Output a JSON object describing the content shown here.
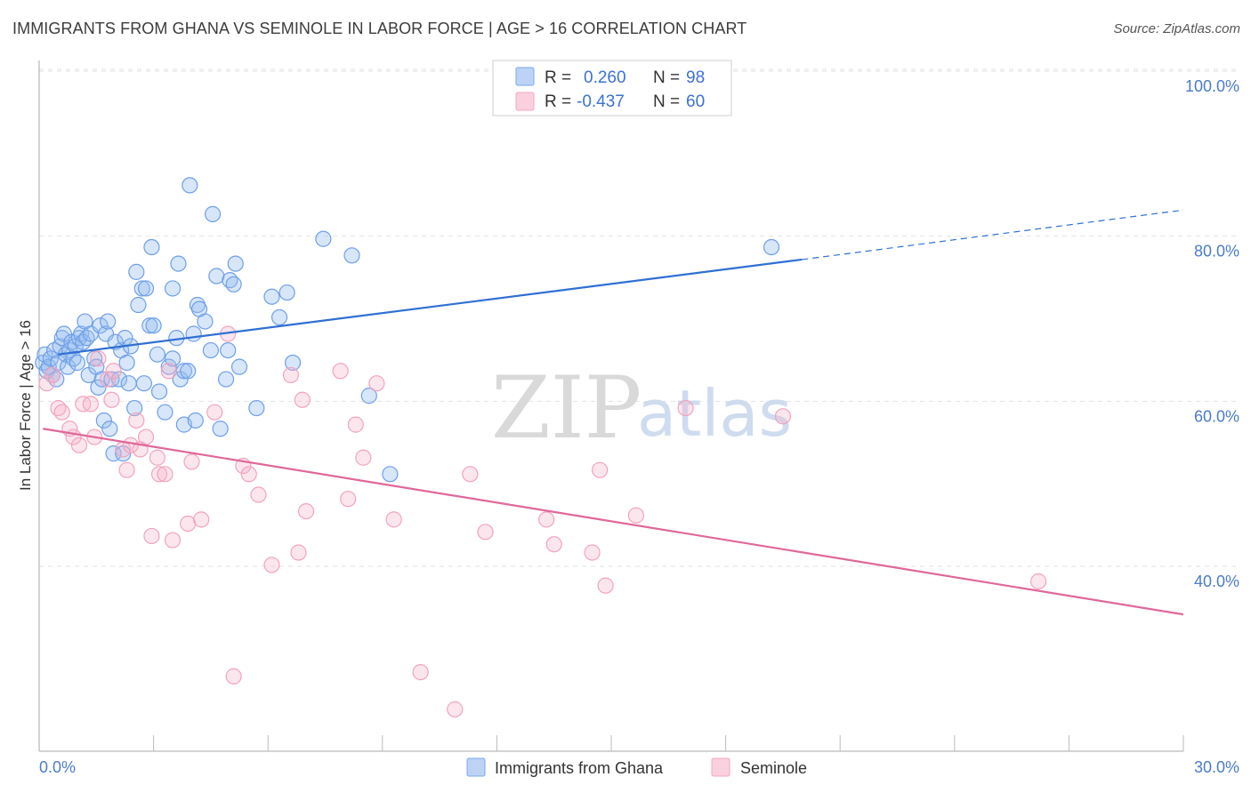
{
  "header": {
    "title": "IMMIGRANTS FROM GHANA VS SEMINOLE IN LABOR FORCE | AGE > 16 CORRELATION CHART",
    "source": "Source: ZipAtlas.com"
  },
  "watermark": {
    "zip": "ZIP",
    "atlas": "atlas"
  },
  "legend_box": {
    "rows": [
      {
        "r_label": "R = ",
        "r_value": "0.260",
        "n_label": "N = ",
        "n_value": "98",
        "color": "#7aaaf0"
      },
      {
        "r_label": "R = ",
        "r_value": "-0.437",
        "n_label": "N = ",
        "n_value": "60",
        "color": "#f4a8c0"
      }
    ]
  },
  "chart_data": {
    "type": "scatter",
    "title": "IMMIGRANTS FROM GHANA VS SEMINOLE IN LABOR FORCE | AGE > 16 CORRELATION CHART",
    "xlabel": "",
    "ylabel": "In Labor Force | Age > 16",
    "xlim": [
      0,
      30
    ],
    "ylim": [
      20,
      103
    ],
    "x_tick_labels": [
      "0.0%",
      "30.0%"
    ],
    "y_ticks": [
      40,
      60,
      80,
      100
    ],
    "y_tick_labels": [
      "40.0%",
      "60.0%",
      "80.0%",
      "100.0%"
    ],
    "grid": true,
    "legend_position": "bottom",
    "series": [
      {
        "name": "Immigrants from Ghana",
        "color": "#6f9fe8",
        "line_color": "#2f6fd4",
        "trend": {
          "x0": 0.5,
          "y0": 67.5,
          "x1": 20.0,
          "y1": 79.0,
          "dash_to_x": 30.0,
          "dash_to_y": 85.0
        },
        "points": [
          [
            0.1,
            66.5
          ],
          [
            0.15,
            67.5
          ],
          [
            0.2,
            65.5
          ],
          [
            0.25,
            66.0
          ],
          [
            0.3,
            67.0
          ],
          [
            0.35,
            65.0
          ],
          [
            0.4,
            68.0
          ],
          [
            0.45,
            64.5
          ],
          [
            0.5,
            66.5
          ],
          [
            0.55,
            68.5
          ],
          [
            0.6,
            69.5
          ],
          [
            0.65,
            70.0
          ],
          [
            0.7,
            67.5
          ],
          [
            0.75,
            66.0
          ],
          [
            0.8,
            68.0
          ],
          [
            0.85,
            69.0
          ],
          [
            0.9,
            67.0
          ],
          [
            0.95,
            68.5
          ],
          [
            1.0,
            66.5
          ],
          [
            1.05,
            69.5
          ],
          [
            1.1,
            70.0
          ],
          [
            1.15,
            69.0
          ],
          [
            1.2,
            71.5
          ],
          [
            1.25,
            69.5
          ],
          [
            1.3,
            65.0
          ],
          [
            1.35,
            70.0
          ],
          [
            1.45,
            67.0
          ],
          [
            1.5,
            66.0
          ],
          [
            1.55,
            63.5
          ],
          [
            1.6,
            71.0
          ],
          [
            1.65,
            64.5
          ],
          [
            1.7,
            59.5
          ],
          [
            1.75,
            70.0
          ],
          [
            1.8,
            71.5
          ],
          [
            1.85,
            58.5
          ],
          [
            1.9,
            64.5
          ],
          [
            1.95,
            55.5
          ],
          [
            2.0,
            69.0
          ],
          [
            2.1,
            64.5
          ],
          [
            2.15,
            68.0
          ],
          [
            2.2,
            55.5
          ],
          [
            2.25,
            69.5
          ],
          [
            2.3,
            66.5
          ],
          [
            2.35,
            64.0
          ],
          [
            2.4,
            68.5
          ],
          [
            2.5,
            61.0
          ],
          [
            2.55,
            77.5
          ],
          [
            2.6,
            73.5
          ],
          [
            2.7,
            75.5
          ],
          [
            2.75,
            64.0
          ],
          [
            2.8,
            75.5
          ],
          [
            2.9,
            71.0
          ],
          [
            2.95,
            80.5
          ],
          [
            3.0,
            71.0
          ],
          [
            3.1,
            67.5
          ],
          [
            3.15,
            63.0
          ],
          [
            3.3,
            60.5
          ],
          [
            3.4,
            66.0
          ],
          [
            3.5,
            75.5
          ],
          [
            3.5,
            67.0
          ],
          [
            3.6,
            69.5
          ],
          [
            3.65,
            78.5
          ],
          [
            3.7,
            64.5
          ],
          [
            3.8,
            59.0
          ],
          [
            3.8,
            65.5
          ],
          [
            3.9,
            65.5
          ],
          [
            3.95,
            88.0
          ],
          [
            4.05,
            70.0
          ],
          [
            4.1,
            59.5
          ],
          [
            4.15,
            73.5
          ],
          [
            4.2,
            73.0
          ],
          [
            4.35,
            71.5
          ],
          [
            4.5,
            68.0
          ],
          [
            4.55,
            84.5
          ],
          [
            4.65,
            77.0
          ],
          [
            4.75,
            58.5
          ],
          [
            4.9,
            64.5
          ],
          [
            4.95,
            68.0
          ],
          [
            5.0,
            76.5
          ],
          [
            5.1,
            76.0
          ],
          [
            5.15,
            78.5
          ],
          [
            5.25,
            66.0
          ],
          [
            5.7,
            61.0
          ],
          [
            6.1,
            74.5
          ],
          [
            6.3,
            72.0
          ],
          [
            6.5,
            75.0
          ],
          [
            6.65,
            66.5
          ],
          [
            7.45,
            81.5
          ],
          [
            8.2,
            79.5
          ],
          [
            8.65,
            62.5
          ],
          [
            9.2,
            53.0
          ],
          [
            19.2,
            80.5
          ]
        ]
      },
      {
        "name": "Seminole",
        "color": "#f2a3bd",
        "line_color": "#e0679a",
        "trend": {
          "x0": 0.1,
          "y0": 58.5,
          "x1": 30.0,
          "y1": 36.0
        },
        "points": [
          [
            0.2,
            64.0
          ],
          [
            0.35,
            65.0
          ],
          [
            0.5,
            61.0
          ],
          [
            0.6,
            60.5
          ],
          [
            0.8,
            58.5
          ],
          [
            0.9,
            57.5
          ],
          [
            1.05,
            56.5
          ],
          [
            1.15,
            61.5
          ],
          [
            1.35,
            61.5
          ],
          [
            1.45,
            57.5
          ],
          [
            1.55,
            67.0
          ],
          [
            1.8,
            64.5
          ],
          [
            1.9,
            62.0
          ],
          [
            1.95,
            65.5
          ],
          [
            2.2,
            56.0
          ],
          [
            2.3,
            53.5
          ],
          [
            2.4,
            56.5
          ],
          [
            2.55,
            59.5
          ],
          [
            2.65,
            56.0
          ],
          [
            2.8,
            57.5
          ],
          [
            2.95,
            45.5
          ],
          [
            3.1,
            55.0
          ],
          [
            3.15,
            53.0
          ],
          [
            3.3,
            53.0
          ],
          [
            3.4,
            65.5
          ],
          [
            3.5,
            45.0
          ],
          [
            3.9,
            47.0
          ],
          [
            4.0,
            54.5
          ],
          [
            4.25,
            47.5
          ],
          [
            4.6,
            60.5
          ],
          [
            4.95,
            70.0
          ],
          [
            5.1,
            28.5
          ],
          [
            5.35,
            54.0
          ],
          [
            5.5,
            53.0
          ],
          [
            5.75,
            50.5
          ],
          [
            6.1,
            42.0
          ],
          [
            6.6,
            65.0
          ],
          [
            6.8,
            43.5
          ],
          [
            6.9,
            62.0
          ],
          [
            7.0,
            48.5
          ],
          [
            7.9,
            65.5
          ],
          [
            8.1,
            50.0
          ],
          [
            8.3,
            59.0
          ],
          [
            8.5,
            55.0
          ],
          [
            8.85,
            64.0
          ],
          [
            9.3,
            47.5
          ],
          [
            10.0,
            29.0
          ],
          [
            10.9,
            24.5
          ],
          [
            11.3,
            53.0
          ],
          [
            11.7,
            46.0
          ],
          [
            13.3,
            47.5
          ],
          [
            13.5,
            44.5
          ],
          [
            14.5,
            43.5
          ],
          [
            14.7,
            53.5
          ],
          [
            14.85,
            39.5
          ],
          [
            15.65,
            48.0
          ],
          [
            16.95,
            61.0
          ],
          [
            19.5,
            60.0
          ],
          [
            26.2,
            40.0
          ]
        ]
      }
    ]
  }
}
